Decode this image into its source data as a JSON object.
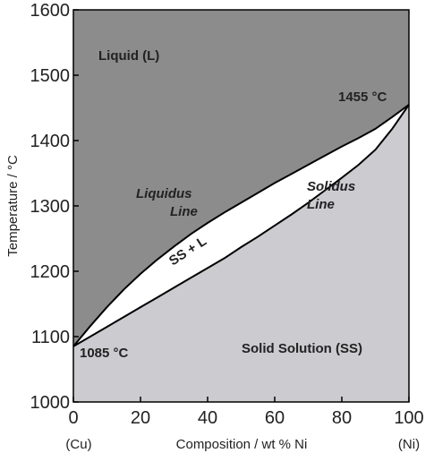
{
  "chart_data": {
    "type": "area",
    "title": "",
    "xlabel": "Composition / wt % Ni",
    "ylabel": "Temperature / °C",
    "xlim": [
      0,
      100
    ],
    "ylim": [
      1000,
      1600
    ],
    "x_ticks": [
      0,
      20,
      40,
      60,
      80,
      100
    ],
    "y_ticks": [
      1000,
      1100,
      1200,
      1300,
      1400,
      1500,
      1600
    ],
    "x_end_labels": {
      "left": "(Cu)",
      "right": "(Ni)"
    },
    "grid": false,
    "series": [
      {
        "name": "Liquidus Line",
        "x": [
          0,
          5,
          10,
          15,
          20,
          25,
          30,
          35,
          40,
          45,
          50,
          55,
          60,
          65,
          70,
          75,
          80,
          85,
          90,
          95,
          100
        ],
        "y": [
          1085,
          1116,
          1145,
          1172,
          1196,
          1218,
          1238,
          1257,
          1274,
          1290,
          1305,
          1320,
          1335,
          1349,
          1363,
          1377,
          1391,
          1404,
          1418,
          1436,
          1455
        ]
      },
      {
        "name": "Solidus Line",
        "x": [
          0,
          5,
          10,
          15,
          20,
          25,
          30,
          35,
          40,
          45,
          50,
          55,
          60,
          65,
          70,
          75,
          80,
          85,
          90,
          95,
          100
        ],
        "y": [
          1085,
          1100,
          1115,
          1130,
          1145,
          1160,
          1175,
          1190,
          1205,
          1220,
          1237,
          1253,
          1270,
          1287,
          1305,
          1324,
          1343,
          1363,
          1386,
          1418,
          1455
        ]
      }
    ],
    "annotations": {
      "liquid": "Liquid (L)",
      "liquidus_1": "Liquidus",
      "liquidus_2": "Line",
      "solidus_1": "Solidus",
      "solidus_2": "Line",
      "ss_l": "SS + L",
      "solid": "Solid Solution (SS)",
      "cu_mp": "1085 °C",
      "ni_mp": "1455 °C"
    },
    "colors": {
      "liquid": "#8c8c8c",
      "two_phase": "#ffffff",
      "solid": "#cbcbd0",
      "line": "#000000"
    }
  }
}
